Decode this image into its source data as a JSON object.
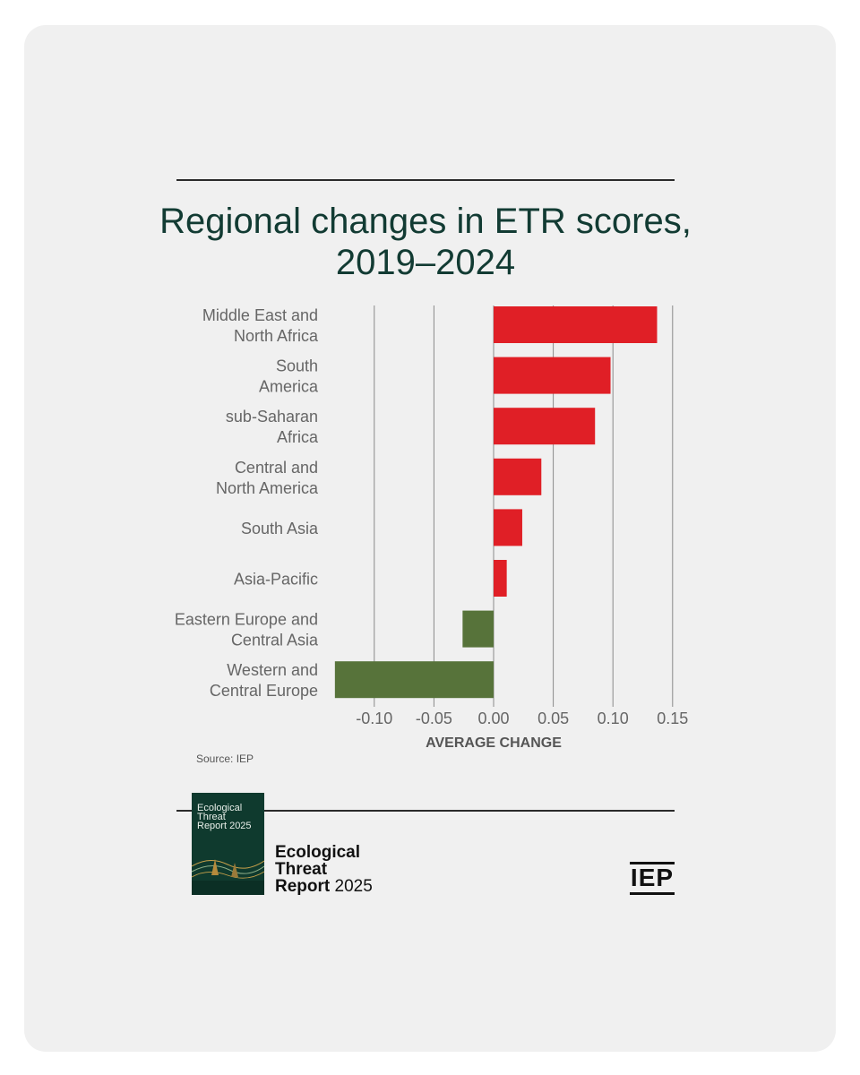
{
  "chart_data": {
    "type": "bar",
    "orientation": "horizontal",
    "title": [
      "Regional changes in ETR scores,",
      "2019–2024"
    ],
    "xlabel": "AVERAGE CHANGE",
    "ylabel": "",
    "xlim": [
      -0.135,
      0.16
    ],
    "ticks": [
      -0.1,
      -0.05,
      0.0,
      0.05,
      0.1,
      0.15
    ],
    "tick_labels": [
      "-0.10",
      "-0.05",
      "0.00",
      "0.05",
      "0.10",
      "0.15"
    ],
    "grid": true,
    "categories": [
      [
        "Middle East and",
        "North Africa"
      ],
      [
        "South",
        "America"
      ],
      [
        "sub-Saharan",
        "Africa"
      ],
      [
        "Central and",
        "North America"
      ],
      [
        "South Asia"
      ],
      [
        "Asia-Pacific"
      ],
      [
        "Eastern Europe and",
        "Central Asia"
      ],
      [
        "Western and",
        "Central Europe"
      ]
    ],
    "values": [
      0.137,
      0.098,
      0.085,
      0.04,
      0.024,
      0.011,
      -0.026,
      -0.133
    ],
    "colors": {
      "positive": "#e01f26",
      "negative": "#57733a"
    }
  },
  "source": "Source: IEP",
  "footer": {
    "report_title": [
      "Ecological",
      "Threat",
      "Report"
    ],
    "report_year": "2025",
    "cover_title": [
      "Ecological",
      "Threat",
      "Report 2025"
    ],
    "logo": "IEP"
  },
  "colors": {
    "title": "#123b33",
    "card_bg": "#f0f0f0",
    "cover_bg": "#0f3a2e"
  }
}
